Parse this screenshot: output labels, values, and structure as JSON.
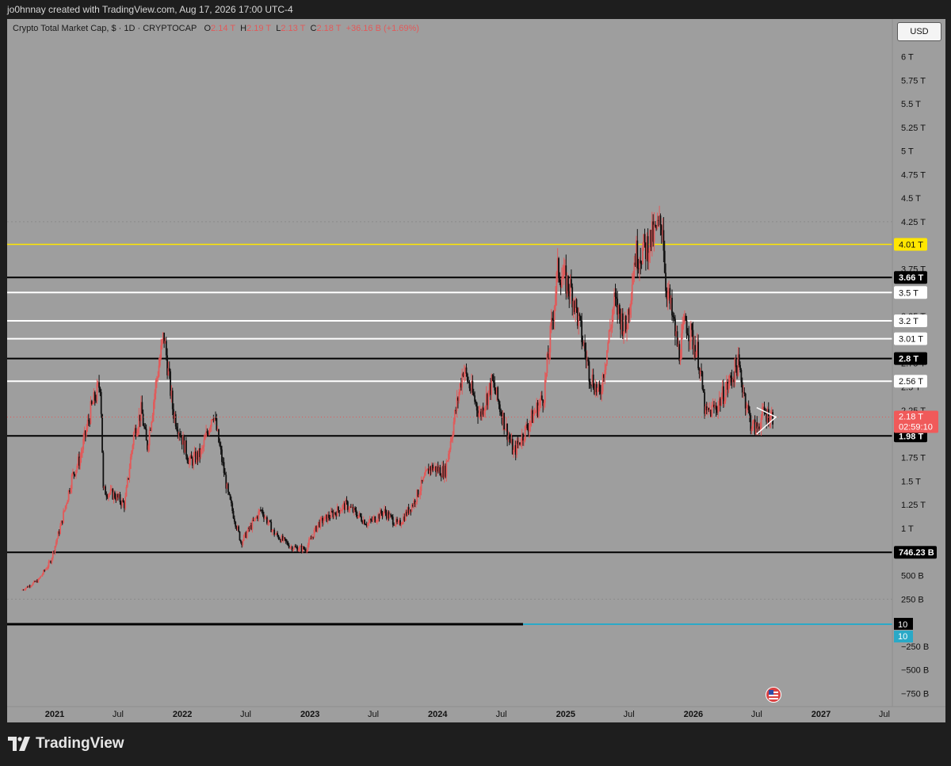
{
  "header": {
    "attribution": "jo0hnnay created with TradingView.com, Aug 17, 2026 17:00 UTC-4"
  },
  "legend": {
    "symbol": "Crypto Total Market Cap, $ · 1D · CRYPTOCAP",
    "open_label": "O",
    "open": "2.14 T",
    "high_label": "H",
    "high": "2.19 T",
    "low_label": "L",
    "low": "2.13 T",
    "close_label": "C",
    "close": "2.18 T",
    "change": "+36.16 B (+1.69%)"
  },
  "currency_button": "USD",
  "footer": {
    "brand": "TradingView"
  },
  "colors": {
    "panel_bg": "#9e9e9e",
    "candle_up": "#e25a5a",
    "candle_down": "#111111",
    "level_yellow": "#ffe600",
    "level_black": "#000000",
    "level_white": "#ffffff",
    "level_cyan": "#2aa9c7"
  },
  "chart_data": {
    "type": "line",
    "series": [
      {
        "values": [
          [
            "2020-10-01",
            0.35
          ],
          [
            "2020-11-15",
            0.45
          ],
          [
            "2020-12-20",
            0.65
          ],
          [
            "2021-01-20",
            1.05
          ],
          [
            "2021-02-20",
            1.55
          ],
          [
            "2021-03-15",
            1.75
          ],
          [
            "2021-04-14",
            2.25
          ],
          [
            "2021-05-12",
            2.55
          ],
          [
            "2021-05-20",
            1.4
          ],
          [
            "2021-06-22",
            1.35
          ],
          [
            "2021-07-20",
            1.25
          ],
          [
            "2021-08-15",
            2.0
          ],
          [
            "2021-09-06",
            2.25
          ],
          [
            "2021-09-22",
            1.85
          ],
          [
            "2021-10-20",
            2.6
          ],
          [
            "2021-11-09",
            3.05
          ],
          [
            "2021-12-05",
            2.25
          ],
          [
            "2022-01-22",
            1.7
          ],
          [
            "2022-02-25",
            1.8
          ],
          [
            "2022-03-30",
            2.25
          ],
          [
            "2022-05-12",
            1.35
          ],
          [
            "2022-06-18",
            0.85
          ],
          [
            "2022-08-14",
            1.2
          ],
          [
            "2022-09-20",
            0.95
          ],
          [
            "2022-11-09",
            0.8
          ],
          [
            "2022-12-20",
            0.78
          ],
          [
            "2023-01-25",
            1.05
          ],
          [
            "2023-04-14",
            1.25
          ],
          [
            "2023-06-15",
            1.05
          ],
          [
            "2023-08-01",
            1.18
          ],
          [
            "2023-09-10",
            1.03
          ],
          [
            "2023-10-25",
            1.28
          ],
          [
            "2023-12-10",
            1.65
          ],
          [
            "2024-01-22",
            1.6
          ],
          [
            "2024-03-14",
            2.7
          ],
          [
            "2024-05-01",
            2.2
          ],
          [
            "2024-06-05",
            2.55
          ],
          [
            "2024-08-05",
            1.8
          ],
          [
            "2024-09-30",
            2.2
          ],
          [
            "2024-10-30",
            2.4
          ],
          [
            "2024-12-10",
            3.75
          ],
          [
            "2025-01-20",
            3.5
          ],
          [
            "2025-03-10",
            2.65
          ],
          [
            "2025-04-08",
            2.4
          ],
          [
            "2025-05-20",
            3.4
          ],
          [
            "2025-06-22",
            3.1
          ],
          [
            "2025-07-18",
            3.9
          ],
          [
            "2025-08-14",
            3.95
          ],
          [
            "2025-10-06",
            4.25
          ],
          [
            "2025-10-12",
            3.65
          ],
          [
            "2025-11-21",
            2.85
          ],
          [
            "2025-12-10",
            3.2
          ],
          [
            "2026-01-14",
            2.85
          ],
          [
            "2026-02-05",
            2.2
          ],
          [
            "2026-03-10",
            2.3
          ],
          [
            "2026-04-15",
            2.55
          ],
          [
            "2026-05-08",
            2.75
          ],
          [
            "2026-05-25",
            2.45
          ],
          [
            "2026-06-15",
            2.1
          ],
          [
            "2026-07-01",
            2.05
          ],
          [
            "2026-07-20",
            2.22
          ],
          [
            "2026-08-17",
            2.18
          ]
        ]
      }
    ],
    "x_tick_labels": [
      "2021",
      "Jul",
      "2022",
      "Jul",
      "2023",
      "Jul",
      "2024",
      "Jul",
      "2025",
      "Jul",
      "2026",
      "Jul",
      "2027",
      "Jul"
    ],
    "y_tick_labels": [
      "6 T",
      "5.75 T",
      "5.5 T",
      "5.25 T",
      "5 T",
      "4.75 T",
      "4.5 T",
      "4.25 T",
      "3.75 T",
      "3.25 T",
      "2.75 T",
      "2.5 T",
      "2.25 T",
      "1.75 T",
      "1.5 T",
      "1.25 T",
      "1 T",
      "500 B",
      "250 B",
      "−250 B",
      "−500 B",
      "−750 B"
    ],
    "y_unit": "trillions USD",
    "ylim": [
      -0.85,
      6.1
    ],
    "horizontal_levels": [
      {
        "value": 4.01,
        "label": "4.01 T",
        "color": "#ffe600",
        "label_style": "yellow"
      },
      {
        "value": 3.66,
        "label": "3.66 T",
        "color": "#000000",
        "label_style": "black"
      },
      {
        "value": 3.5,
        "label": "3.5 T",
        "color": "#ffffff",
        "label_style": "white"
      },
      {
        "value": 3.2,
        "label": "3.2 T",
        "color": "#ffffff",
        "label_style": "white"
      },
      {
        "value": 3.01,
        "label": "3.01 T",
        "color": "#ffffff",
        "label_style": "white"
      },
      {
        "value": 2.8,
        "label": "2.8 T",
        "color": "#000000",
        "label_style": "black"
      },
      {
        "value": 2.56,
        "label": "2.56 T",
        "color": "#ffffff",
        "label_style": "white"
      },
      {
        "value": 1.98,
        "label": "1.98 T",
        "color": "#000000",
        "label_style": "black"
      },
      {
        "value": 0.74623,
        "label": "746.23 B",
        "color": "#000000",
        "label_style": "black"
      }
    ],
    "indicator_line": {
      "label": "10",
      "label_secondary": "10",
      "start": "2024-09-01",
      "color": "#2aa9c7",
      "dark_color": "#000000"
    },
    "last_price": {
      "value": 2.18,
      "label": "2.18 T",
      "countdown": "02:59:10"
    },
    "triangle_pattern": {
      "start": "2026-07-01",
      "end": "2026-08-25",
      "upper": [
        2.28,
        2.18
      ],
      "lower": [
        2.0,
        2.18
      ]
    }
  }
}
